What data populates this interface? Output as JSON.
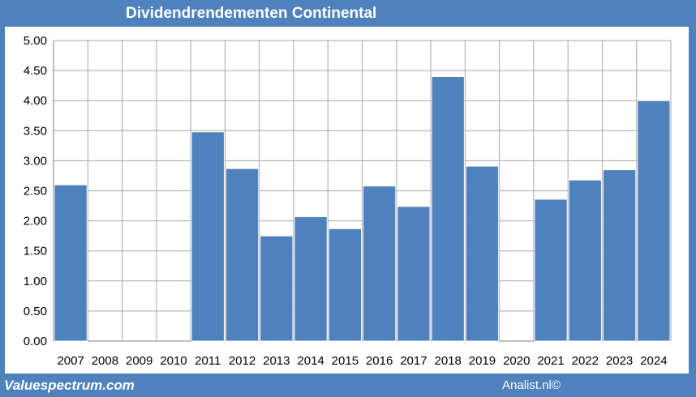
{
  "colors": {
    "background": "#4f81bd",
    "bar": "#4f81bd",
    "grid": "#a6a6a6"
  },
  "footer": {
    "left": "Valuespectrum.com",
    "right": "Analist.nl©"
  },
  "chart_data": {
    "type": "bar",
    "title": "Dividendrendementen Continental",
    "xlabel": "",
    "ylabel": "",
    "ylim": [
      0,
      5
    ],
    "yticks": [
      "0.00",
      "0.50",
      "1.00",
      "1.50",
      "2.00",
      "2.50",
      "3.00",
      "3.50",
      "4.00",
      "4.50",
      "5.00"
    ],
    "grid": true,
    "categories": [
      "2007",
      "2008",
      "2009",
      "2010",
      "2011",
      "2012",
      "2013",
      "2014",
      "2015",
      "2016",
      "2017",
      "2018",
      "2019",
      "2020",
      "2021",
      "2022",
      "2023",
      "2024"
    ],
    "values": [
      2.6,
      0,
      0,
      0,
      3.48,
      2.87,
      1.75,
      2.07,
      1.87,
      2.58,
      2.24,
      4.4,
      2.91,
      0,
      2.36,
      2.68,
      2.85,
      4.0
    ]
  }
}
